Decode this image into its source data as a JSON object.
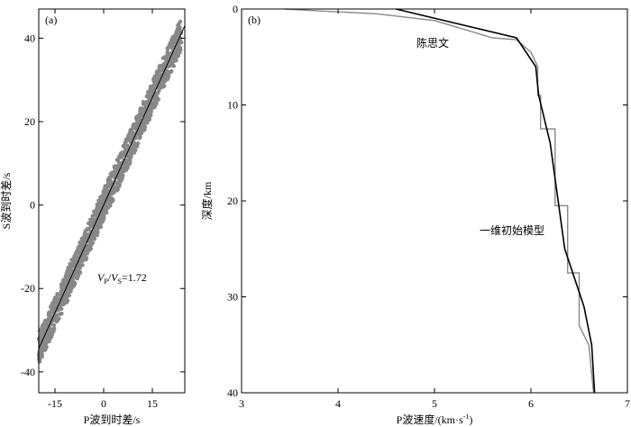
{
  "chart_data": [
    {
      "panel_label": "(a)",
      "type": "scatter",
      "xlabel": "P波到时差/s",
      "ylabel": "S波到时差/s",
      "xlim": [
        -20,
        25
      ],
      "ylim": [
        -45,
        47
      ],
      "xticks": [
        -15,
        0,
        15
      ],
      "yticks": [
        -40,
        -20,
        0,
        20,
        40
      ],
      "annotation": {
        "v1": "V",
        "s1": "P",
        "slash": "/",
        "v2": "V",
        "s2": "S",
        "eq": "=1.72"
      },
      "fit": {
        "slope": 1.72,
        "intercept": 0
      },
      "scatter_band": {
        "x_range": [
          -24,
          24
        ],
        "half_width_s": 1.6
      },
      "colors": {
        "scatter": "#888888",
        "fit": "#000000"
      }
    },
    {
      "panel_label": "(b)",
      "type": "line",
      "xlabel": "P波速度/(km·s",
      "xlabel_sup": "-1",
      "xlabel_end": ")",
      "ylabel": "深度/km",
      "xlim": [
        3,
        7
      ],
      "ylim": [
        40,
        0
      ],
      "xticks": [
        3,
        4,
        5,
        6,
        7
      ],
      "yticks": [
        0,
        10,
        20,
        30,
        40
      ],
      "series": [
        {
          "name": "陈思文",
          "color": "#888888",
          "points": [
            [
              3.45,
              0
            ],
            [
              3.8,
              0.2
            ],
            [
              4.4,
              0.5
            ],
            [
              5.0,
              1.2
            ],
            [
              5.6,
              3.0
            ],
            [
              5.85,
              3.2
            ],
            [
              6.0,
              4.5
            ],
            [
              6.07,
              6
            ],
            [
              6.07,
              9
            ],
            [
              6.1,
              9
            ],
            [
              6.1,
              12.5
            ],
            [
              6.25,
              12.5
            ],
            [
              6.25,
              20.5
            ],
            [
              6.38,
              20.5
            ],
            [
              6.38,
              27.5
            ],
            [
              6.5,
              27.5
            ],
            [
              6.5,
              33
            ],
            [
              6.6,
              35
            ],
            [
              6.65,
              40
            ]
          ]
        },
        {
          "name": "一维初始模型",
          "color": "#000000",
          "points": [
            [
              4.6,
              0
            ],
            [
              5.85,
              3
            ],
            [
              6.05,
              6
            ],
            [
              6.08,
              9
            ],
            [
              6.2,
              14
            ],
            [
              6.35,
              25
            ],
            [
              6.55,
              31
            ],
            [
              6.63,
              35
            ],
            [
              6.66,
              40
            ]
          ]
        }
      ]
    }
  ]
}
